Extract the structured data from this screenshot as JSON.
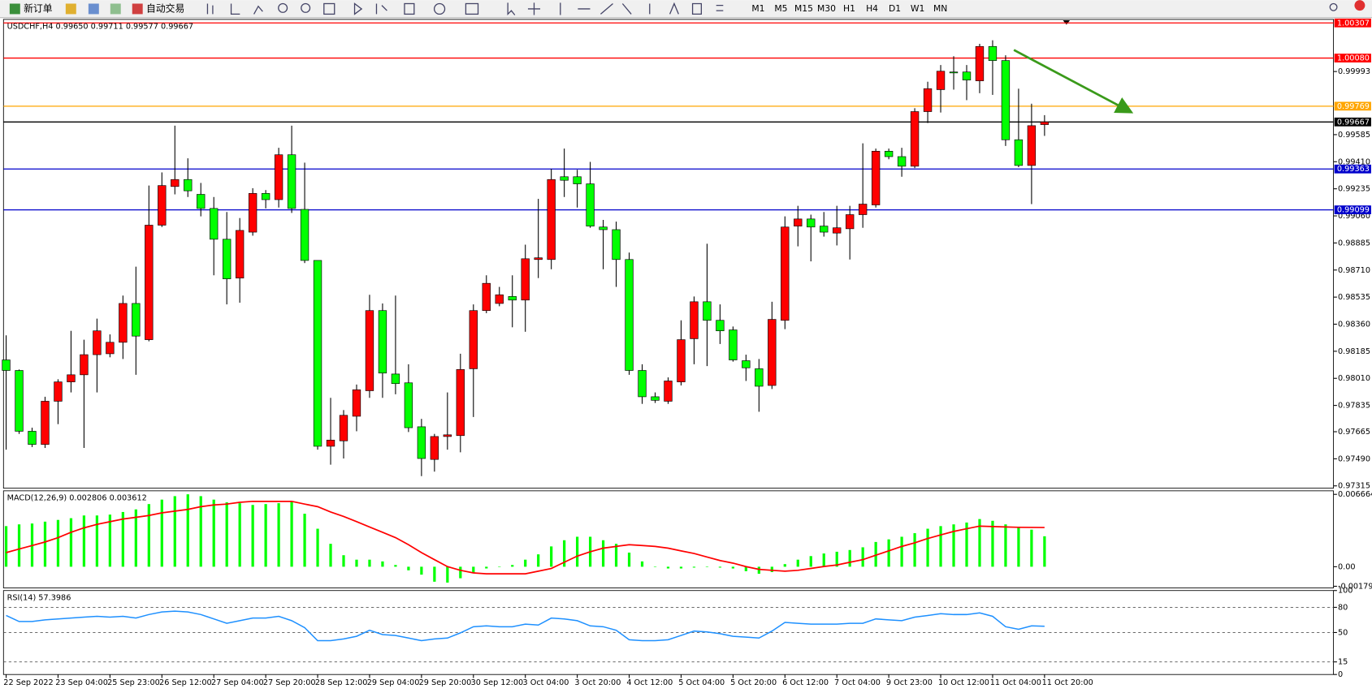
{
  "toolbar": {
    "new_order": "新订单",
    "auto_trading": "自动交易",
    "timeframes": [
      "M1",
      "M5",
      "M15",
      "M30",
      "H1",
      "H4",
      "D1",
      "W1",
      "MN"
    ]
  },
  "chart_data": [
    {
      "type": "candlestick",
      "title": "USDCHF,H4 0.99650 0.99711 0.99577 0.99667",
      "categories": [
        "22 Sep 2022",
        null,
        null,
        null,
        "23 Sep 04:00",
        null,
        null,
        null,
        "25 Sep 23:00",
        null,
        null,
        null,
        "26 Sep 12:00",
        null,
        null,
        null,
        "27 Sep 04:00",
        null,
        null,
        null,
        "27 Sep 20:00",
        null,
        null,
        null,
        "28 Sep 12:00",
        null,
        null,
        null,
        "29 Sep 04:00",
        null,
        null,
        null,
        "29 Sep 20:00",
        null,
        null,
        null,
        "30 Sep 12:00",
        null,
        null,
        null,
        "3 Oct 04:00",
        null,
        null,
        null,
        "3 Oct 20:00",
        null,
        null,
        null,
        "4 Oct 12:00",
        null,
        null,
        null,
        "5 Oct 04:00",
        null,
        null,
        null,
        "5 Oct 20:00",
        null,
        null,
        null,
        "6 Oct 12:00",
        null,
        null,
        null,
        "7 Oct 04:00",
        null,
        null,
        null,
        "9 Oct 23:00",
        null,
        null,
        null,
        "10 Oct 12:00",
        null,
        null,
        null,
        "11 Oct 04:00",
        null,
        null,
        null,
        "11 Oct 20:00"
      ],
      "open": [
        0.98129,
        0.98061,
        0.97668,
        0.97583,
        0.97862,
        0.97987,
        0.98033,
        0.98163,
        0.98169,
        0.98243,
        0.98494,
        0.9826,
        0.99,
        0.9925,
        0.99295,
        0.99199,
        0.99108,
        0.98909,
        0.98658,
        0.98955,
        0.99205,
        0.99165,
        0.99455,
        0.99102,
        0.98772,
        0.97571,
        0.97606,
        0.97765,
        0.9793,
        0.98448,
        0.98038,
        0.97981,
        0.97697,
        0.97486,
        0.97634,
        0.9764,
        0.98072,
        0.98448,
        0.98494,
        0.98539,
        0.98516,
        0.98778,
        0.98778,
        0.99313,
        0.99313,
        0.99267,
        0.98988,
        0.98971,
        0.98778,
        0.98061,
        0.97891,
        0.97862,
        0.97987,
        0.98266,
        0.98505,
        0.98385,
        0.98323,
        0.98124,
        0.98072,
        0.97964,
        0.98385,
        0.98994,
        0.9904,
        0.98994,
        0.98949,
        0.98977,
        0.99068,
        0.99131,
        0.99478,
        0.99443,
        0.99381,
        0.99734,
        0.99876,
        0.9999,
        0.9999,
        0.99933,
        1.00155,
        1.00064,
        0.99552,
        0.99386,
        0.9965
      ],
      "high": [
        0.98288,
        0.98067,
        0.97691,
        0.97891,
        0.98004,
        0.98317,
        0.9826,
        0.98396,
        0.98294,
        0.98545,
        0.98732,
        0.99256,
        0.99341,
        0.99643,
        0.99432,
        0.99273,
        0.99182,
        0.99085,
        0.99046,
        0.99239,
        0.99227,
        0.995,
        0.99643,
        0.99404,
        0.98772,
        0.97884,
        0.97805,
        0.9797,
        0.9855,
        0.98494,
        0.98545,
        0.98101,
        0.97748,
        0.97651,
        0.97919,
        0.98169,
        0.98488,
        0.98676,
        0.98601,
        0.98676,
        0.98874,
        0.9917,
        0.99364,
        0.99495,
        0.99358,
        0.99409,
        0.99034,
        0.99023,
        0.98823,
        0.98101,
        0.97919,
        0.98016,
        0.98385,
        0.98539,
        0.9888,
        0.98488,
        0.98345,
        0.98163,
        0.98135,
        0.98505,
        0.99057,
        0.99125,
        0.99068,
        0.99085,
        0.99125,
        0.99125,
        0.99529,
        0.99495,
        0.99495,
        0.995,
        0.99756,
        0.99927,
        1.00035,
        1.00092,
        1.00035,
        1.00172,
        1.00195,
        1.00098,
        0.99882,
        0.99785,
        0.99711
      ],
      "low": [
        0.97549,
        0.97651,
        0.97566,
        0.9756,
        0.97714,
        0.97919,
        0.9756,
        0.97919,
        0.98146,
        0.98135,
        0.98033,
        0.98249,
        0.98988,
        0.99199,
        0.99182,
        0.99057,
        0.98676,
        0.98488,
        0.98499,
        0.98932,
        0.99108,
        0.99114,
        0.99079,
        0.98755,
        0.97549,
        0.97452,
        0.97492,
        0.97668,
        0.97884,
        0.97884,
        0.97907,
        0.97663,
        0.97378,
        0.97407,
        0.97549,
        0.97532,
        0.9776,
        0.98431,
        0.98476,
        0.9834,
        0.98311,
        0.98658,
        0.98715,
        0.99182,
        0.99114,
        0.98983,
        0.98715,
        0.98601,
        0.98033,
        0.97845,
        0.97851,
        0.97845,
        0.97964,
        0.98101,
        0.98089,
        0.98232,
        0.98118,
        0.97993,
        0.97794,
        0.97941,
        0.98328,
        0.98863,
        0.98766,
        0.98926,
        0.98869,
        0.98778,
        0.98983,
        0.99114,
        0.99426,
        0.99313,
        0.99369,
        0.9966,
        0.99728,
        0.99876,
        0.99808,
        0.99853,
        0.99842,
        0.99512,
        0.99375,
        0.99136,
        0.99577
      ],
      "close": [
        0.98061,
        0.97668,
        0.97583,
        0.97862,
        0.97987,
        0.98033,
        0.98163,
        0.98317,
        0.98243,
        0.98494,
        0.98283,
        0.99,
        0.99256,
        0.99295,
        0.99222,
        0.99108,
        0.98909,
        0.98653,
        0.98966,
        0.99205,
        0.99165,
        0.99455,
        0.99108,
        0.98772,
        0.97571,
        0.97611,
        0.97771,
        0.97936,
        0.98448,
        0.98044,
        0.97976,
        0.97691,
        0.97492,
        0.97634,
        0.97645,
        0.98067,
        0.98448,
        0.98624,
        0.9855,
        0.98516,
        0.98783,
        0.98789,
        0.99295,
        0.9929,
        0.99267,
        0.98994,
        0.98971,
        0.98778,
        0.98061,
        0.97891,
        0.97868,
        0.97993,
        0.9826,
        0.98505,
        0.98385,
        0.98317,
        0.98129,
        0.98078,
        0.97959,
        0.98391,
        0.98988,
        0.9904,
        0.98988,
        0.98955,
        0.98983,
        0.99068,
        0.99136,
        0.99478,
        0.99443,
        0.99381,
        0.99734,
        0.99882,
        0.99995,
        0.99984,
        0.99938,
        1.00155,
        1.00064,
        0.99552,
        0.99386,
        0.99643,
        0.99667
      ],
      "up_color": "#ff0000",
      "down_color": "#00ff00",
      "ylim": [
        0.973,
        1.0033
      ],
      "yticks": [
        0.99993,
        0.99585,
        {
          "value": 0.9941,
          "label": "0.99410"
        },
        0.99235,
        {
          "value": 0.9906,
          "label": "0.99060"
        },
        0.98885,
        {
          "value": 0.9871,
          "label": "0.98710"
        },
        0.98535,
        {
          "value": 0.9836,
          "label": "0.98360"
        },
        0.98185,
        {
          "value": 0.9801,
          "label": "0.98010"
        },
        0.97835,
        0.97665,
        {
          "value": 0.9749,
          "label": "0.97490"
        },
        0.97315
      ],
      "levels": [
        {
          "value": 1.00307,
          "color": "#ff0000"
        },
        {
          "value": 1.0008,
          "label": "1.00080",
          "color": "#ff0000"
        },
        {
          "value": 0.99769,
          "color": "#ffa500"
        },
        {
          "value": 0.99667,
          "color": "#000000"
        },
        {
          "value": 0.99363,
          "color": "#0000cc"
        },
        {
          "value": 0.99099,
          "color": "#0000cc"
        }
      ]
    },
    {
      "type": "macd",
      "title": "MACD(12,26,9) 0.002806 0.003612",
      "histogram": [
        0.00374,
        0.0039,
        0.00398,
        0.00415,
        0.00431,
        0.00447,
        0.00472,
        0.00472,
        0.0048,
        0.00504,
        0.00528,
        0.00577,
        0.00618,
        0.0065,
        0.00667,
        0.0065,
        0.00618,
        0.00593,
        0.00585,
        0.00569,
        0.00577,
        0.00585,
        0.00602,
        0.00488,
        0.0035,
        0.00211,
        0.00106,
        0.00065,
        0.00065,
        0.00049,
        0.00016,
        -0.00033,
        -0.00073,
        -0.00138,
        -0.00146,
        -0.00106,
        -0.00057,
        -0.00016,
        2e-05,
        0.00016,
        0.00065,
        0.00114,
        0.00187,
        0.00244,
        0.00276,
        0.00276,
        0.00244,
        0.00211,
        0.0013,
        0.00049,
        3e-05,
        -0.00016,
        -0.00016,
        -8e-05,
        -2e-05,
        -8e-05,
        -0.00016,
        -0.00041,
        -0.00065,
        -0.00049,
        0.00024,
        0.00065,
        0.00098,
        0.00122,
        0.00138,
        0.00154,
        0.00179,
        0.00228,
        0.00252,
        0.00276,
        0.00309,
        0.0035,
        0.00374,
        0.0039,
        0.00407,
        0.00439,
        0.00423,
        0.0039,
        0.00366,
        0.00341,
        0.002806
      ],
      "signal": [
        0.0013,
        0.00163,
        0.00195,
        0.00228,
        0.00268,
        0.00317,
        0.00358,
        0.0039,
        0.00415,
        0.00439,
        0.00455,
        0.00472,
        0.00496,
        0.00512,
        0.00528,
        0.00553,
        0.00569,
        0.00577,
        0.00593,
        0.00602,
        0.00602,
        0.00602,
        0.00602,
        0.00577,
        0.00553,
        0.00504,
        0.00463,
        0.00415,
        0.00366,
        0.00317,
        0.00268,
        0.00203,
        0.0013,
        0.00065,
        1e-05,
        -0.00033,
        -0.00057,
        -0.00065,
        -0.00065,
        -0.00065,
        -0.00065,
        -0.00041,
        -0.00016,
        0.00041,
        0.00098,
        0.00138,
        0.00171,
        0.00187,
        0.00203,
        0.00195,
        0.00187,
        0.00171,
        0.00146,
        0.00122,
        0.00089,
        0.00057,
        0.00033,
        1e-05,
        -0.00024,
        -0.00033,
        -0.00041,
        -0.00033,
        -0.00016,
        2e-05,
        0.00016,
        0.00041,
        0.00065,
        0.00106,
        0.00146,
        0.00187,
        0.0022,
        0.0026,
        0.00293,
        0.00325,
        0.0035,
        0.00374,
        0.0037,
        0.00366,
        0.00363,
        0.00362,
        0.003612
      ],
      "histogram_color": "#00ff00",
      "signal_color": "#ff0000",
      "ylim": [
        -0.00195,
        0.00699
      ],
      "yticks": [
        0.006664,
        {
          "value": 0,
          "label": "0.00"
        },
        -0.001798
      ]
    },
    {
      "type": "line",
      "title": "RSI(14) 57.3986",
      "values": [
        70.3,
        63.1,
        63.1,
        65.1,
        66.2,
        67.2,
        68.3,
        69.3,
        68.3,
        69.3,
        67.2,
        71.4,
        74.5,
        75.5,
        74.5,
        71.4,
        66.2,
        61.0,
        64.1,
        67.2,
        67.2,
        69.3,
        64.1,
        55.8,
        40.3,
        40.3,
        42.4,
        45.5,
        52.7,
        47.6,
        46.5,
        43.4,
        40.3,
        42.4,
        43.4,
        49.6,
        56.9,
        57.9,
        56.9,
        56.9,
        60.0,
        58.9,
        67.2,
        66.2,
        64.1,
        57.9,
        56.9,
        52.7,
        41.4,
        40.3,
        40.3,
        41.4,
        46.5,
        51.7,
        50.7,
        48.6,
        45.5,
        44.5,
        43.4,
        51.7,
        62.0,
        61.0,
        60.0,
        60.0,
        60.0,
        61.0,
        61.0,
        66.2,
        65.1,
        64.1,
        68.3,
        70.3,
        72.4,
        71.4,
        71.4,
        73.4,
        69.3,
        56.9,
        53.8,
        57.9,
        57.3986
      ],
      "color": "#1e90ff",
      "ylim": [
        0,
        100
      ],
      "yticks": [
        100,
        80,
        50,
        15,
        0
      ],
      "levels": [
        80,
        50,
        15
      ]
    }
  ]
}
